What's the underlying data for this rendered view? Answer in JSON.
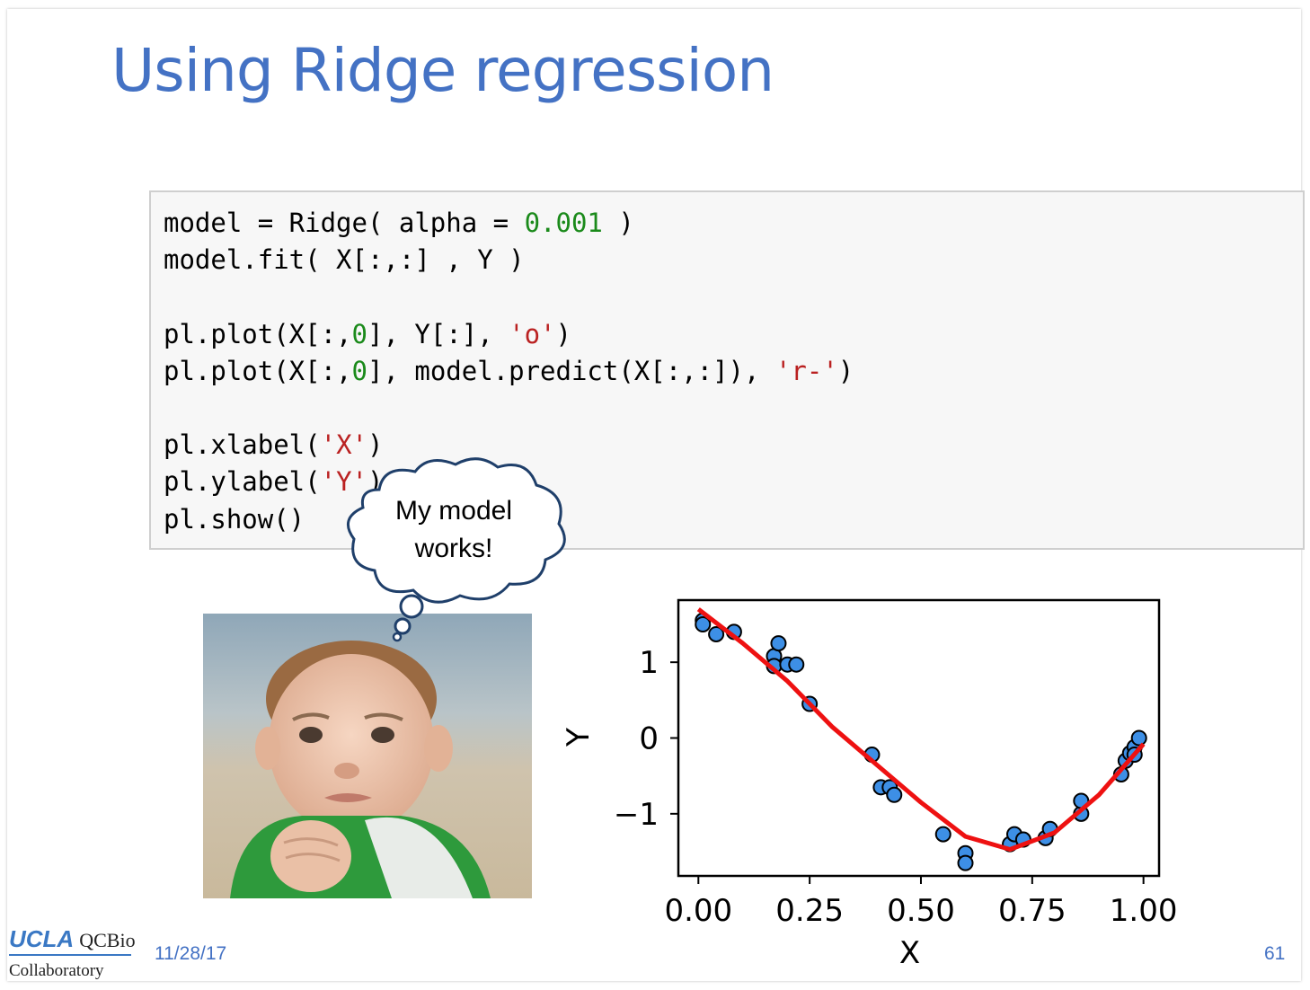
{
  "slide": {
    "title": "Using Ridge regression",
    "date": "11/28/17",
    "page_number": "61",
    "logo": {
      "brand": "UCLA",
      "program": "QCBio",
      "unit": "Collaboratory"
    }
  },
  "code": {
    "line1": {
      "a": "model = Ridge( alpha = ",
      "num": "0.001",
      "b": " )"
    },
    "line2": "model.fit( X[:,:] , Y )",
    "line3": {
      "a": "pl.plot(X[:,",
      "num": "0",
      "b": "], Y[:], ",
      "str": "'o'",
      "c": ")"
    },
    "line4": {
      "a": "pl.plot(X[:,",
      "num": "0",
      "b": "], model.predict(X[:,:]), ",
      "str": "'r-'",
      "c": ")"
    },
    "line5": {
      "a": "pl.xlabel(",
      "str": "'X'",
      "c": ")"
    },
    "line6": {
      "a": "pl.ylabel(",
      "str": "'Y'",
      "c": ")"
    },
    "line7": "pl.show()"
  },
  "thought_bubble": {
    "line1": "My model",
    "line2": "works!"
  },
  "colors": {
    "title": "#4472c4",
    "points": "#3d8fe6",
    "fit_line": "#ee1111",
    "number": "#1a8a1a",
    "string": "#ba2121"
  },
  "chart_data": {
    "type": "scatter",
    "xlabel": "X",
    "ylabel": "Y",
    "xlim": [
      -0.045,
      1.035
    ],
    "ylim": [
      -1.82,
      1.82
    ],
    "xticks": [
      0.0,
      0.25,
      0.5,
      0.75,
      1.0
    ],
    "xtick_labels": [
      "0.00",
      "0.25",
      "0.50",
      "0.75",
      "1.00"
    ],
    "yticks": [
      1,
      0,
      -1
    ],
    "ytick_labels": [
      "1",
      "0",
      "−1"
    ],
    "series": [
      {
        "marker": "o",
        "points": [
          [
            0.01,
            1.55
          ],
          [
            0.01,
            1.5
          ],
          [
            0.04,
            1.37
          ],
          [
            0.08,
            1.4
          ],
          [
            0.17,
            1.08
          ],
          [
            0.17,
            0.95
          ],
          [
            0.18,
            1.25
          ],
          [
            0.2,
            0.97
          ],
          [
            0.22,
            0.97
          ],
          [
            0.25,
            0.45
          ],
          [
            0.39,
            -0.22
          ],
          [
            0.41,
            -0.65
          ],
          [
            0.43,
            -0.65
          ],
          [
            0.44,
            -0.75
          ],
          [
            0.55,
            -1.27
          ],
          [
            0.6,
            -1.52
          ],
          [
            0.6,
            -1.65
          ],
          [
            0.7,
            -1.4
          ],
          [
            0.71,
            -1.27
          ],
          [
            0.73,
            -1.34
          ],
          [
            0.78,
            -1.32
          ],
          [
            0.79,
            -1.2
          ],
          [
            0.86,
            -1.0
          ],
          [
            0.86,
            -0.83
          ],
          [
            0.95,
            -0.48
          ],
          [
            0.96,
            -0.3
          ],
          [
            0.97,
            -0.2
          ],
          [
            0.98,
            -0.12
          ],
          [
            0.98,
            -0.22
          ],
          [
            0.99,
            0.0
          ]
        ]
      },
      {
        "style": "r-",
        "points": [
          [
            0.0,
            1.7
          ],
          [
            0.1,
            1.25
          ],
          [
            0.2,
            0.75
          ],
          [
            0.3,
            0.15
          ],
          [
            0.4,
            -0.35
          ],
          [
            0.5,
            -0.85
          ],
          [
            0.6,
            -1.3
          ],
          [
            0.7,
            -1.47
          ],
          [
            0.8,
            -1.25
          ],
          [
            0.9,
            -0.75
          ],
          [
            1.0,
            -0.08
          ]
        ]
      }
    ]
  }
}
